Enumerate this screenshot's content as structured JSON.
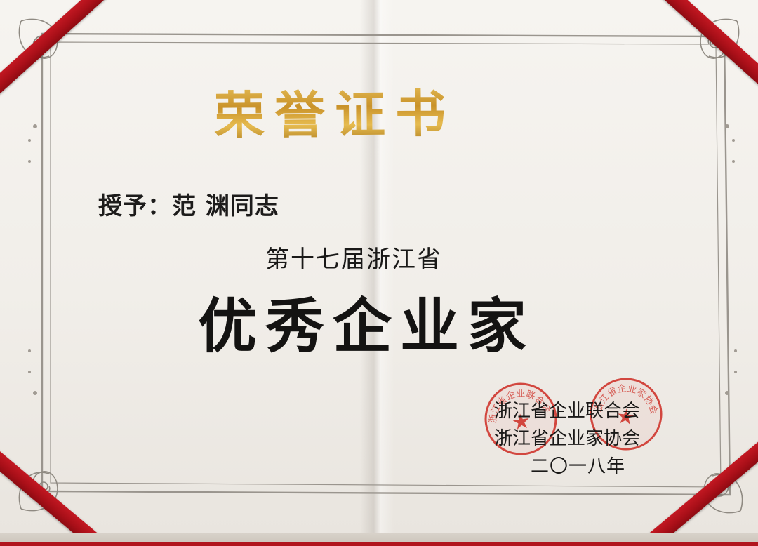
{
  "certificate": {
    "title": "荣誉证书",
    "recipient_line": "授予：范 渊同志",
    "edition": "第十七届浙江省",
    "award": "优秀企业家",
    "issuers": [
      "浙江省企业联合会",
      "浙江省企业家协会"
    ],
    "issue_date": "二〇一八年",
    "seals": [
      {
        "arc_text": "浙江省企业联合会",
        "star": "★"
      },
      {
        "arc_text": "浙江省企业家协会",
        "star": "★"
      }
    ]
  },
  "colors": {
    "ribbon": "#b0151d",
    "gold": "#c99a2e",
    "frame": "#9a958e",
    "seal_red": "#d2473f",
    "ink": "#1a1918"
  }
}
